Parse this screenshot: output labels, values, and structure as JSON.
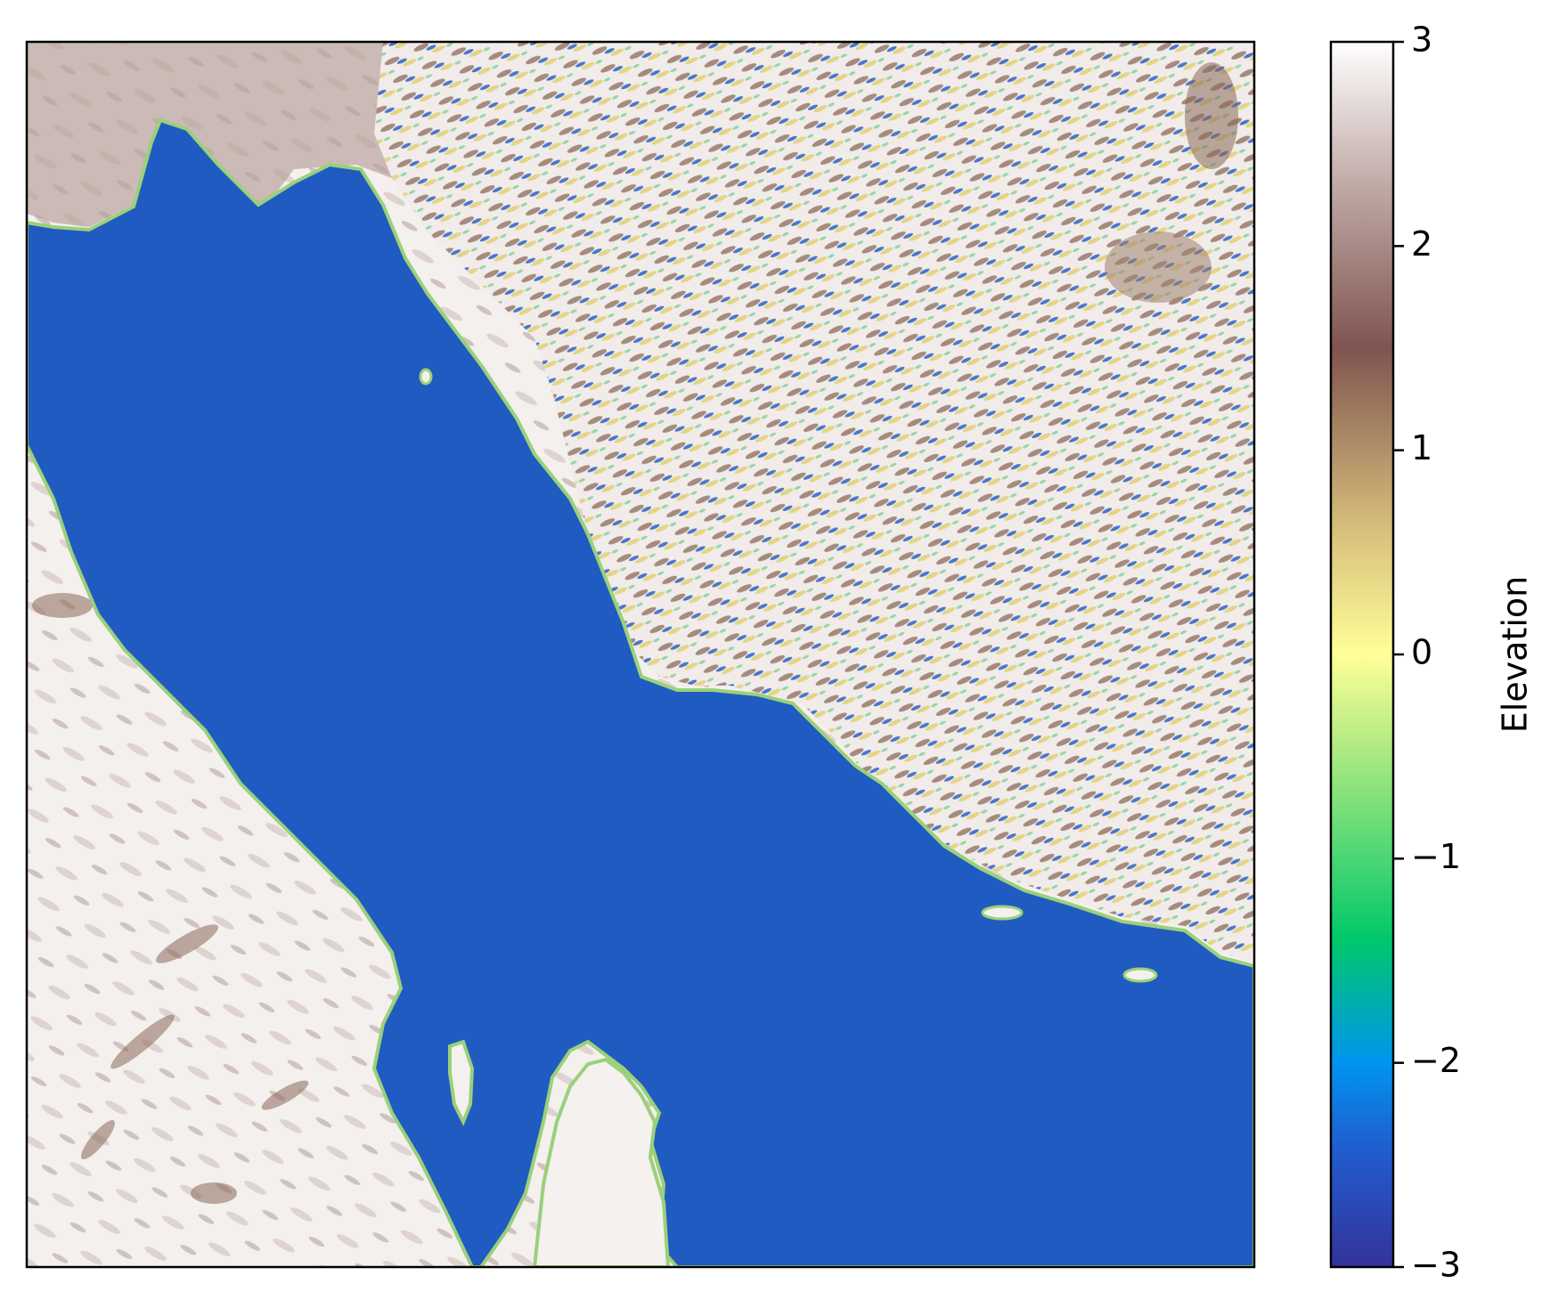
{
  "map": {
    "colormap": "terrain",
    "colors": {
      "water": "#1f5bc0",
      "shore": "#9ad07a",
      "lowland": "#e8dc8a",
      "brown": "#8a6a5a",
      "snow": "#f6f3f1",
      "frame": "#000000"
    },
    "regions": [
      "water-body",
      "north-east-highlands",
      "south-west-desert",
      "peninsula",
      "island"
    ]
  },
  "colorbar": {
    "label": "Elevation",
    "vmin": -3,
    "vmax": 3,
    "ticks": [
      {
        "value": 3,
        "label": "3"
      },
      {
        "value": 2,
        "label": "2"
      },
      {
        "value": 1,
        "label": "1"
      },
      {
        "value": 0,
        "label": "0"
      },
      {
        "value": -1,
        "label": "−1"
      },
      {
        "value": -2,
        "label": "−2"
      },
      {
        "value": -3,
        "label": "−3"
      }
    ],
    "stops": [
      {
        "value": -3,
        "color": "#333399"
      },
      {
        "value": -2.4,
        "color": "#1f5fd0"
      },
      {
        "value": -2.0,
        "color": "#0095f0"
      },
      {
        "value": -1.4,
        "color": "#00c86a"
      },
      {
        "value": -0.5,
        "color": "#a8e880"
      },
      {
        "value": 0,
        "color": "#ffff99"
      },
      {
        "value": 0.6,
        "color": "#d8c07c"
      },
      {
        "value": 1.5,
        "color": "#805450"
      },
      {
        "value": 2.3,
        "color": "#c0aaa6"
      },
      {
        "value": 3,
        "color": "#ffffff"
      }
    ]
  }
}
